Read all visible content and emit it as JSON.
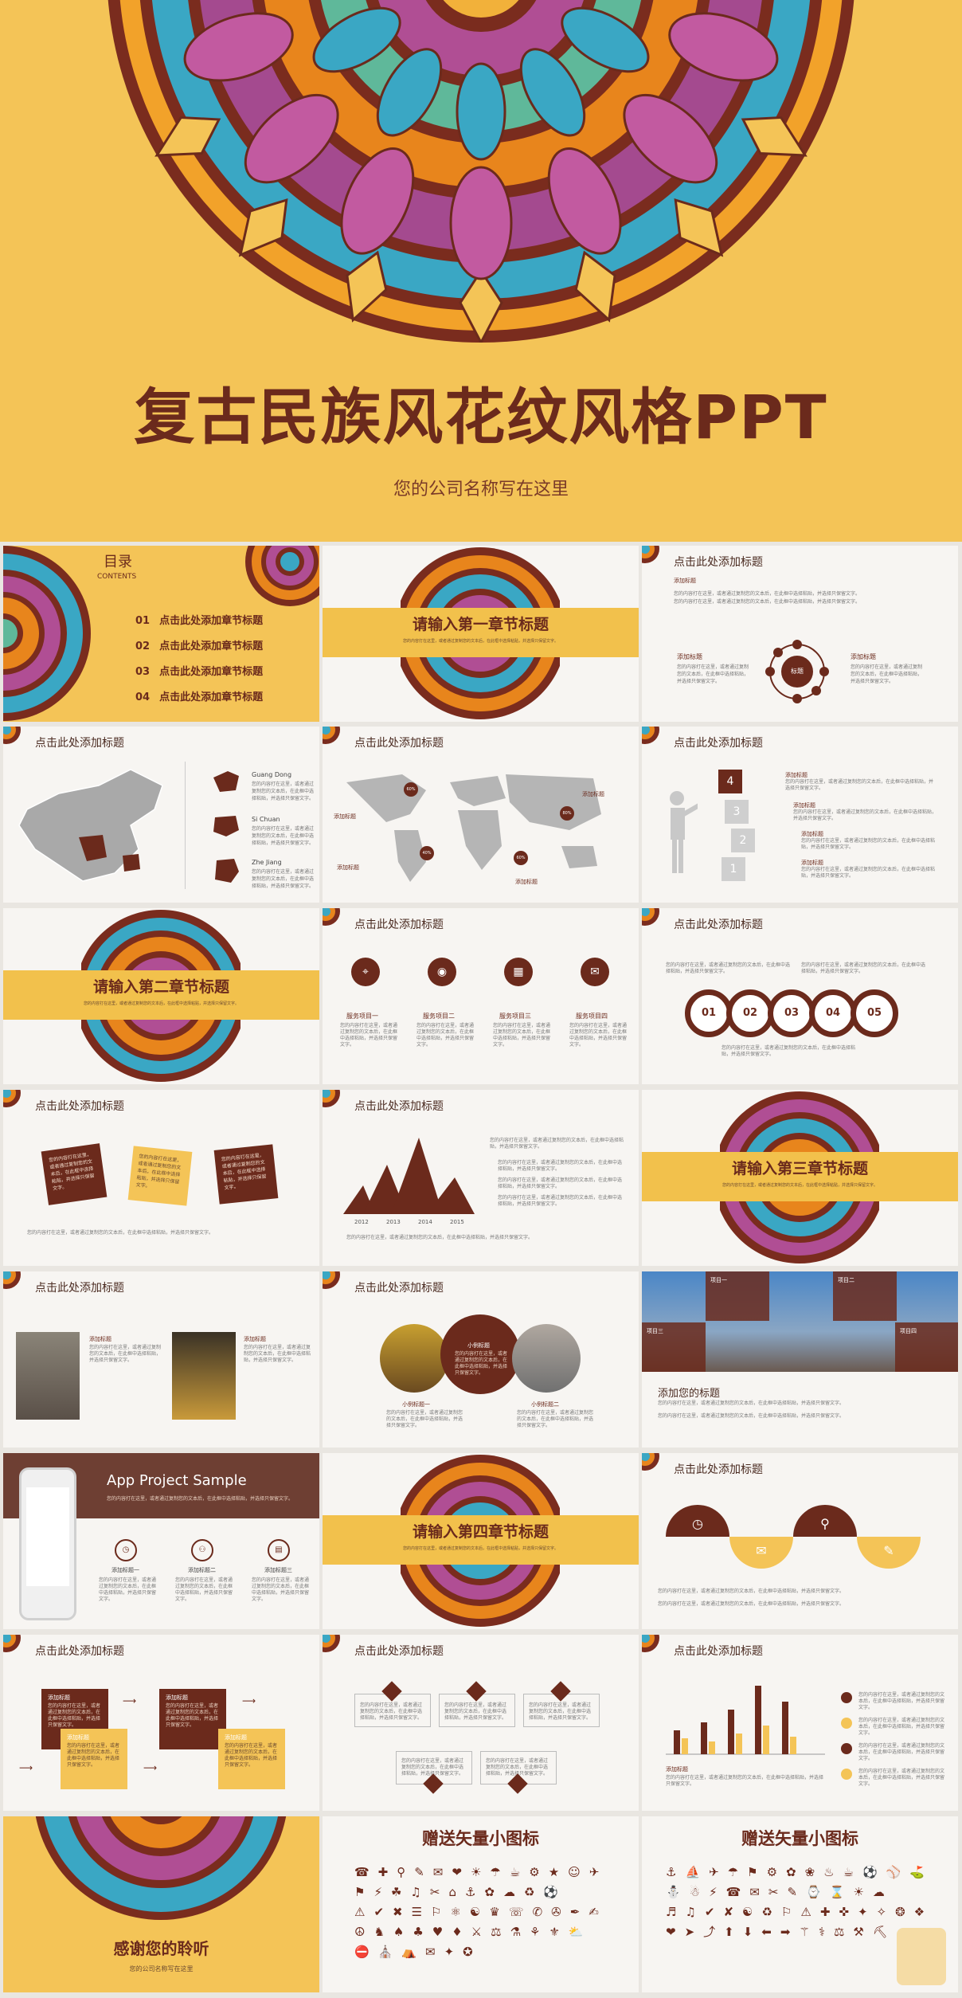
{
  "hero": {
    "title": "复古民族风花纹风格PPT",
    "subtitle": "您的公司名称写在这里"
  },
  "colors": {
    "yellow": "#f4c457",
    "brown": "#6b2a1c",
    "purple": "#9a4a8c",
    "teal": "#3fa3b8",
    "orange": "#e88a1e"
  },
  "common": {
    "slide_title": "点击此处添加标题",
    "add_title": "添加标题",
    "placeholder": "您的内容打在这里，或者通过复制您的文本后，在此框中选择粘贴，并选择只保留文字。"
  },
  "toc": {
    "title": "目录",
    "subtitle": "CONTENTS",
    "items": [
      {
        "num": "01",
        "label": "点击此处添加章节标题"
      },
      {
        "num": "02",
        "label": "点击此处添加章节标题"
      },
      {
        "num": "03",
        "label": "点击此处添加章节标题"
      },
      {
        "num": "04",
        "label": "点击此处添加章节标题"
      }
    ]
  },
  "chapters": {
    "c1": "请输入第一章节标题",
    "c2": "请输入第二章节标题",
    "c3": "请输入第三章节标题",
    "c4": "请输入第四章节标题"
  },
  "s3": {
    "center": "标题",
    "left_label": "添加标题",
    "right_label": "添加标题",
    "top_label": "添加标题"
  },
  "s4": {
    "labels": [
      "Guang Dong",
      "Si Chuan",
      "Zhe Jiang"
    ]
  },
  "s5": {
    "pins": [
      "60%",
      "40%",
      "60%",
      "80%"
    ],
    "labels": [
      "添加标题",
      "添加标题",
      "添加标题",
      "添加标题"
    ]
  },
  "s6": {
    "steps": [
      "4",
      "3",
      "2",
      "1"
    ],
    "labels": [
      "添加标题",
      "添加标题",
      "添加标题",
      "添加标题"
    ]
  },
  "s8": {
    "items": [
      "服务项目一",
      "服务项目二",
      "服务项目三",
      "服务项目四"
    ]
  },
  "s9": {
    "rings": [
      "01",
      "02",
      "03",
      "04",
      "05"
    ]
  },
  "s11": {
    "years": [
      "2012",
      "2013",
      "2014",
      "2015"
    ]
  },
  "s14": {
    "labels": [
      "小例标题",
      "小例标题一",
      "小例标题二"
    ]
  },
  "s15": {
    "heading": "添加您的标题",
    "tags": [
      "项目一",
      "项目二",
      "项目三",
      "项目四"
    ]
  },
  "s16": {
    "title": "App Project Sample",
    "items": [
      "添加标题一",
      "添加标题二",
      "添加标题三"
    ]
  },
  "icons_title": "赠送矢量小图标",
  "thanks": {
    "title": "感谢您的聆听",
    "subtitle": "您的公司名称写在这里"
  }
}
